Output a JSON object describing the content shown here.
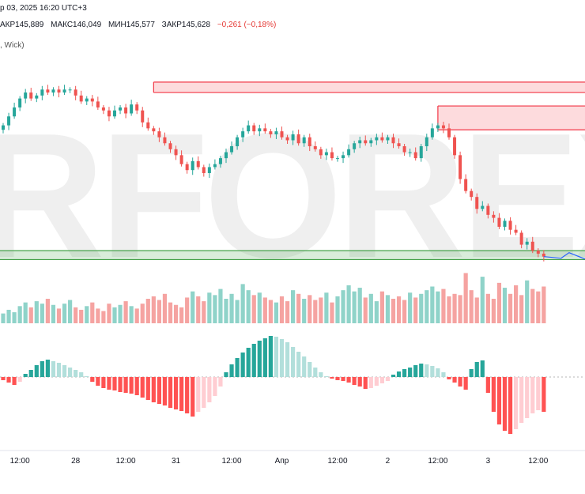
{
  "header": {
    "line1": "р 03, 2025 16:20 UTC+3",
    "ohlc": [
      {
        "label": "АКР",
        "value": "145,889"
      },
      {
        "label": "МАКС",
        "value": "146,049"
      },
      {
        "label": "МИН",
        "value": "145,577"
      },
      {
        "label": "ЗАКР",
        "value": "145,628"
      }
    ],
    "change": "−0,261 (−0,18%)",
    "line3": ", Wick)"
  },
  "watermark": "RFOREX",
  "colors": {
    "up": "#26a69a",
    "down": "#ef5350",
    "vol_up": "#8fd3c9",
    "vol_down": "#f5a3a1",
    "hist_up_strong": "#26a69a",
    "hist_up_weak": "#b2dfdb",
    "hist_down_strong": "#ff5252",
    "hist_down_weak": "#ffcdd2",
    "resistance": "#f23645",
    "support": "#43a047"
  },
  "chart_data": {
    "type": "candlestick",
    "time_labels": [
      "12:00",
      "28",
      "12:00",
      "31",
      "12:00",
      "Апр",
      "12:00",
      "2",
      "12:00",
      "3",
      "12:00"
    ],
    "close": [
      150.0,
      150.3,
      150.6,
      150.9,
      151.1,
      150.9,
      151.0,
      151.2,
      151.1,
      151.2,
      151.1,
      151.2,
      151.2,
      151.0,
      150.8,
      150.9,
      150.8,
      150.6,
      150.5,
      150.3,
      150.5,
      150.6,
      150.4,
      150.7,
      150.5,
      150.1,
      149.9,
      149.8,
      149.6,
      149.4,
      149.2,
      149.0,
      148.7,
      148.5,
      148.8,
      148.6,
      148.4,
      148.6,
      148.7,
      148.9,
      149.1,
      149.3,
      149.6,
      149.8,
      150.0,
      149.8,
      149.9,
      149.8,
      149.7,
      149.8,
      149.6,
      149.5,
      149.7,
      149.4,
      149.6,
      149.3,
      149.2,
      149.0,
      149.1,
      148.9,
      148.9,
      149.0,
      149.2,
      149.4,
      149.5,
      149.4,
      149.5,
      149.6,
      149.5,
      149.6,
      149.4,
      149.3,
      149.1,
      149.1,
      148.9,
      149.3,
      149.6,
      149.9,
      150.0,
      149.9,
      149.6,
      149.0,
      148.2,
      147.8,
      147.6,
      147.2,
      147.3,
      147.0,
      146.9,
      146.6,
      146.8,
      146.5,
      146.4,
      146.0,
      146.1,
      145.8,
      145.7,
      145.6
    ],
    "volume": [
      8,
      11,
      9,
      14,
      17,
      13,
      18,
      16,
      20,
      15,
      12,
      16,
      19,
      13,
      11,
      14,
      17,
      12,
      10,
      16,
      13,
      15,
      18,
      14,
      12,
      16,
      20,
      22,
      19,
      24,
      17,
      15,
      13,
      21,
      26,
      22,
      18,
      25,
      23,
      28,
      20,
      24,
      19,
      32,
      27,
      23,
      25,
      21,
      19,
      17,
      22,
      18,
      27,
      24,
      20,
      23,
      19,
      21,
      25,
      17,
      22,
      27,
      31,
      26,
      29,
      21,
      24,
      18,
      26,
      23,
      20,
      22,
      19,
      25,
      21,
      24,
      27,
      30,
      26,
      28,
      22,
      24,
      23,
      41,
      27,
      21,
      38,
      24,
      20,
      33,
      29,
      24,
      31,
      23,
      35,
      28,
      26,
      30
    ],
    "histogram": [
      -0.2,
      -0.35,
      -0.5,
      -0.3,
      0.2,
      0.45,
      0.75,
      1.0,
      1.1,
      1.0,
      0.9,
      0.75,
      0.6,
      0.45,
      0.3,
      0.05,
      -0.3,
      -0.55,
      -0.7,
      -0.8,
      -0.85,
      -0.95,
      -1.0,
      -1.05,
      -1.15,
      -1.3,
      -1.45,
      -1.6,
      -1.7,
      -1.8,
      -1.95,
      -2.05,
      -2.15,
      -2.3,
      -2.5,
      -2.2,
      -1.95,
      -1.6,
      -1.2,
      -0.6,
      0.3,
      0.8,
      1.2,
      1.55,
      1.85,
      2.1,
      2.3,
      2.45,
      2.6,
      2.55,
      2.4,
      2.2,
      1.9,
      1.6,
      1.3,
      0.95,
      0.6,
      0.3,
      0.05,
      -0.1,
      -0.2,
      -0.25,
      -0.35,
      -0.5,
      -0.6,
      -0.75,
      -0.7,
      -0.55,
      -0.4,
      -0.25,
      0.15,
      0.35,
      0.5,
      0.6,
      0.75,
      0.85,
      0.8,
      0.7,
      0.55,
      0.3,
      -0.15,
      -0.35,
      -0.6,
      -0.8,
      0.5,
      0.95,
      1.05,
      -1.0,
      -2.2,
      -3.0,
      -3.4,
      -3.6,
      -3.3,
      -2.9,
      -2.6,
      -2.3,
      -2.1,
      -2.2
    ],
    "resistance_zones": [
      {
        "from_index": 27,
        "to": "right",
        "low": 151.1,
        "high": 151.45
      },
      {
        "from_index": 78,
        "to": "right",
        "low": 149.85,
        "high": 150.65
      }
    ],
    "support_zone": {
      "from": "left",
      "to": "right",
      "low": 145.5,
      "high": 145.8
    },
    "price_range": [
      145.3,
      152.4
    ],
    "grid": false
  }
}
